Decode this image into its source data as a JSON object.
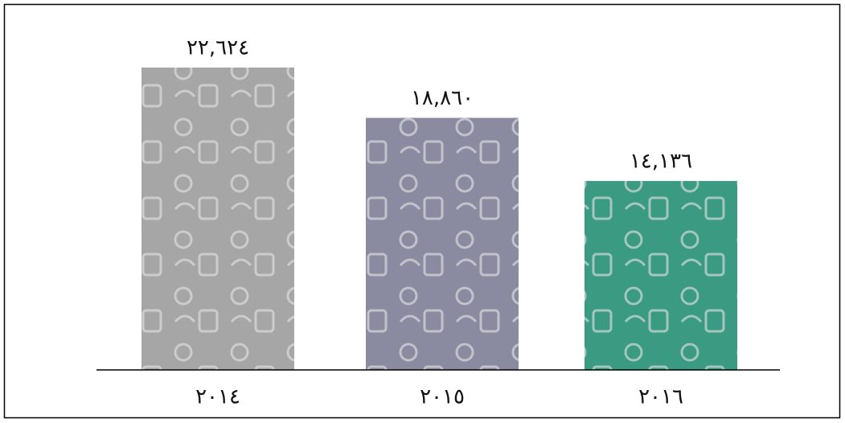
{
  "chart_data": {
    "type": "bar",
    "categories": [
      "٢٠١٤",
      "٢٠١٥",
      "٢٠١٦"
    ],
    "values": [
      22624,
      18860,
      14136
    ],
    "value_labels": [
      "٢٢,٦٢٤",
      "١٨,٨٦٠",
      "١٤,١٣٦"
    ],
    "colors": [
      "#a6a6a6",
      "#8a8ba0",
      "#3b9a82"
    ]
  }
}
